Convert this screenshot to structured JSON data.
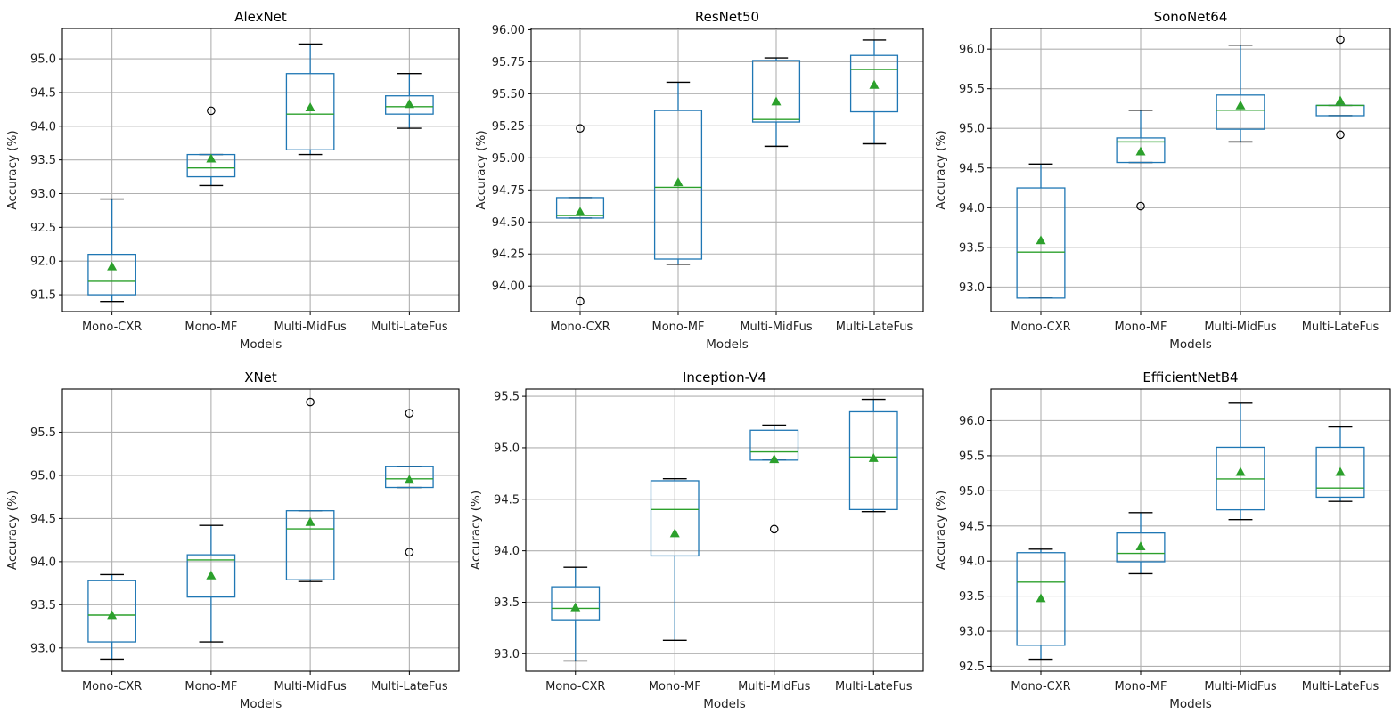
{
  "chart_data": [
    {
      "type": "box",
      "title": "AlexNet",
      "xlabel": "Models",
      "ylabel": "Accuracy (%)",
      "categories": [
        "Mono-CXR",
        "Mono-MF",
        "Multi-MidFus",
        "Multi-LateFus"
      ],
      "ylim": [
        91.25,
        95.45
      ],
      "yticks": [
        91.5,
        92.0,
        92.5,
        93.0,
        93.5,
        94.0,
        94.5,
        95.0
      ],
      "ytick_labels": [
        "91.5",
        "92.0",
        "92.5",
        "93.0",
        "93.5",
        "94.0",
        "94.5",
        "95.0"
      ],
      "grid": true,
      "boxes": [
        {
          "whislo": 91.4,
          "q1": 91.5,
          "med": 91.7,
          "q3": 92.1,
          "whishi": 92.92,
          "mean": 91.92,
          "fliers": []
        },
        {
          "whislo": 93.12,
          "q1": 93.25,
          "med": 93.38,
          "q3": 93.58,
          "whishi": 93.58,
          "mean": 93.52,
          "fliers": [
            94.23
          ]
        },
        {
          "whislo": 93.58,
          "q1": 93.65,
          "med": 94.18,
          "q3": 94.78,
          "whishi": 95.22,
          "mean": 94.28,
          "fliers": []
        },
        {
          "whislo": 93.97,
          "q1": 94.18,
          "med": 94.29,
          "q3": 94.45,
          "whishi": 94.78,
          "mean": 94.33,
          "fliers": []
        }
      ]
    },
    {
      "type": "box",
      "title": "ResNet50",
      "xlabel": "Models",
      "ylabel": "Accuracy (%)",
      "categories": [
        "Mono-CXR",
        "Mono-MF",
        "Multi-MidFus",
        "Multi-LateFus"
      ],
      "ylim": [
        93.8,
        96.01
      ],
      "yticks": [
        94.0,
        94.25,
        94.5,
        94.75,
        95.0,
        95.25,
        95.5,
        95.75,
        96.0
      ],
      "ytick_labels": [
        "94.00",
        "94.25",
        "94.50",
        "94.75",
        "95.00",
        "95.25",
        "95.50",
        "95.75",
        "96.00"
      ],
      "grid": true,
      "boxes": [
        {
          "whislo": 94.53,
          "q1": 94.53,
          "med": 94.55,
          "q3": 94.69,
          "whishi": 94.69,
          "mean": 94.58,
          "fliers": [
            95.23,
            93.88
          ]
        },
        {
          "whislo": 94.17,
          "q1": 94.21,
          "med": 94.77,
          "q3": 95.37,
          "whishi": 95.59,
          "mean": 94.81,
          "fliers": []
        },
        {
          "whislo": 95.09,
          "q1": 95.28,
          "med": 95.3,
          "q3": 95.76,
          "whishi": 95.78,
          "mean": 95.44,
          "fliers": []
        },
        {
          "whislo": 95.11,
          "q1": 95.36,
          "med": 95.69,
          "q3": 95.8,
          "whishi": 95.92,
          "mean": 95.57,
          "fliers": []
        }
      ]
    },
    {
      "type": "box",
      "title": "SonoNet64",
      "xlabel": "Models",
      "ylabel": "Accuracy (%)",
      "categories": [
        "Mono-CXR",
        "Mono-MF",
        "Multi-MidFus",
        "Multi-LateFus"
      ],
      "ylim": [
        92.69,
        96.26
      ],
      "yticks": [
        93.0,
        93.5,
        94.0,
        94.5,
        95.0,
        95.5,
        96.0
      ],
      "ytick_labels": [
        "93.0",
        "93.5",
        "94.0",
        "94.5",
        "95.0",
        "95.5",
        "96.0"
      ],
      "grid": true,
      "boxes": [
        {
          "whislo": 92.86,
          "q1": 92.86,
          "med": 93.44,
          "q3": 94.25,
          "whishi": 94.55,
          "mean": 93.59,
          "fliers": []
        },
        {
          "whislo": 94.57,
          "q1": 94.57,
          "med": 94.83,
          "q3": 94.88,
          "whishi": 95.23,
          "mean": 94.71,
          "fliers": [
            94.02
          ]
        },
        {
          "whislo": 94.83,
          "q1": 94.99,
          "med": 95.23,
          "q3": 95.42,
          "whishi": 96.05,
          "mean": 95.29,
          "fliers": []
        },
        {
          "whislo": 95.16,
          "q1": 95.16,
          "med": 95.29,
          "q3": 95.29,
          "whishi": 95.29,
          "mean": 95.35,
          "fliers": [
            96.12,
            94.92
          ]
        }
      ]
    },
    {
      "type": "box",
      "title": "XNet",
      "xlabel": "Models",
      "ylabel": "Accuracy (%)",
      "categories": [
        "Mono-CXR",
        "Mono-MF",
        "Multi-MidFus",
        "Multi-LateFus"
      ],
      "ylim": [
        92.73,
        96.0
      ],
      "yticks": [
        93.0,
        93.5,
        94.0,
        94.5,
        95.0,
        95.5
      ],
      "ytick_labels": [
        "93.0",
        "93.5",
        "94.0",
        "94.5",
        "95.0",
        "95.5"
      ],
      "grid": true,
      "boxes": [
        {
          "whislo": 92.87,
          "q1": 93.07,
          "med": 93.38,
          "q3": 93.78,
          "whishi": 93.85,
          "mean": 93.38,
          "fliers": []
        },
        {
          "whislo": 93.07,
          "q1": 93.59,
          "med": 94.02,
          "q3": 94.08,
          "whishi": 94.42,
          "mean": 93.84,
          "fliers": []
        },
        {
          "whislo": 93.77,
          "q1": 93.79,
          "med": 94.38,
          "q3": 94.59,
          "whishi": 94.59,
          "mean": 94.46,
          "fliers": [
            95.85
          ]
        },
        {
          "whislo": 94.86,
          "q1": 94.86,
          "med": 94.96,
          "q3": 95.1,
          "whishi": 95.1,
          "mean": 94.95,
          "fliers": [
            95.72,
            94.11
          ]
        }
      ]
    },
    {
      "type": "box",
      "title": "Inception-V4",
      "xlabel": "Models",
      "ylabel": "Accuracy (%)",
      "categories": [
        "Mono-CXR",
        "Mono-MF",
        "Multi-MidFus",
        "Multi-LateFus"
      ],
      "ylim": [
        92.83,
        95.57
      ],
      "yticks": [
        93.0,
        93.5,
        94.0,
        94.5,
        95.0,
        95.5
      ],
      "ytick_labels": [
        "93.0",
        "93.5",
        "94.0",
        "94.5",
        "95.0",
        "95.5"
      ],
      "grid": true,
      "boxes": [
        {
          "whislo": 92.93,
          "q1": 93.33,
          "med": 93.44,
          "q3": 93.65,
          "whishi": 93.84,
          "mean": 93.45,
          "fliers": []
        },
        {
          "whislo": 93.13,
          "q1": 93.95,
          "med": 94.4,
          "q3": 94.68,
          "whishi": 94.7,
          "mean": 94.17,
          "fliers": []
        },
        {
          "whislo": 94.88,
          "q1": 94.88,
          "med": 94.96,
          "q3": 95.17,
          "whishi": 95.22,
          "mean": 94.89,
          "fliers": [
            94.21
          ]
        },
        {
          "whislo": 94.38,
          "q1": 94.4,
          "med": 94.91,
          "q3": 95.35,
          "whishi": 95.47,
          "mean": 94.9,
          "fliers": []
        }
      ]
    },
    {
      "type": "box",
      "title": "EfficientNetB4",
      "xlabel": "Models",
      "ylabel": "Accuracy (%)",
      "categories": [
        "Mono-CXR",
        "Mono-MF",
        "Multi-MidFus",
        "Multi-LateFus"
      ],
      "ylim": [
        92.43,
        96.45
      ],
      "yticks": [
        92.5,
        93.0,
        93.5,
        94.0,
        94.5,
        95.0,
        95.5,
        96.0
      ],
      "ytick_labels": [
        "92.5",
        "93.0",
        "93.5",
        "94.0",
        "94.5",
        "95.0",
        "95.5",
        "96.0"
      ],
      "grid": true,
      "boxes": [
        {
          "whislo": 92.6,
          "q1": 92.8,
          "med": 93.7,
          "q3": 94.12,
          "whishi": 94.17,
          "mean": 93.47,
          "fliers": []
        },
        {
          "whislo": 93.82,
          "q1": 93.99,
          "med": 94.11,
          "q3": 94.4,
          "whishi": 94.69,
          "mean": 94.21,
          "fliers": []
        },
        {
          "whislo": 94.59,
          "q1": 94.73,
          "med": 95.17,
          "q3": 95.62,
          "whishi": 96.25,
          "mean": 95.27,
          "fliers": []
        },
        {
          "whislo": 94.85,
          "q1": 94.91,
          "med": 95.04,
          "q3": 95.62,
          "whishi": 95.91,
          "mean": 95.27,
          "fliers": []
        }
      ]
    }
  ]
}
